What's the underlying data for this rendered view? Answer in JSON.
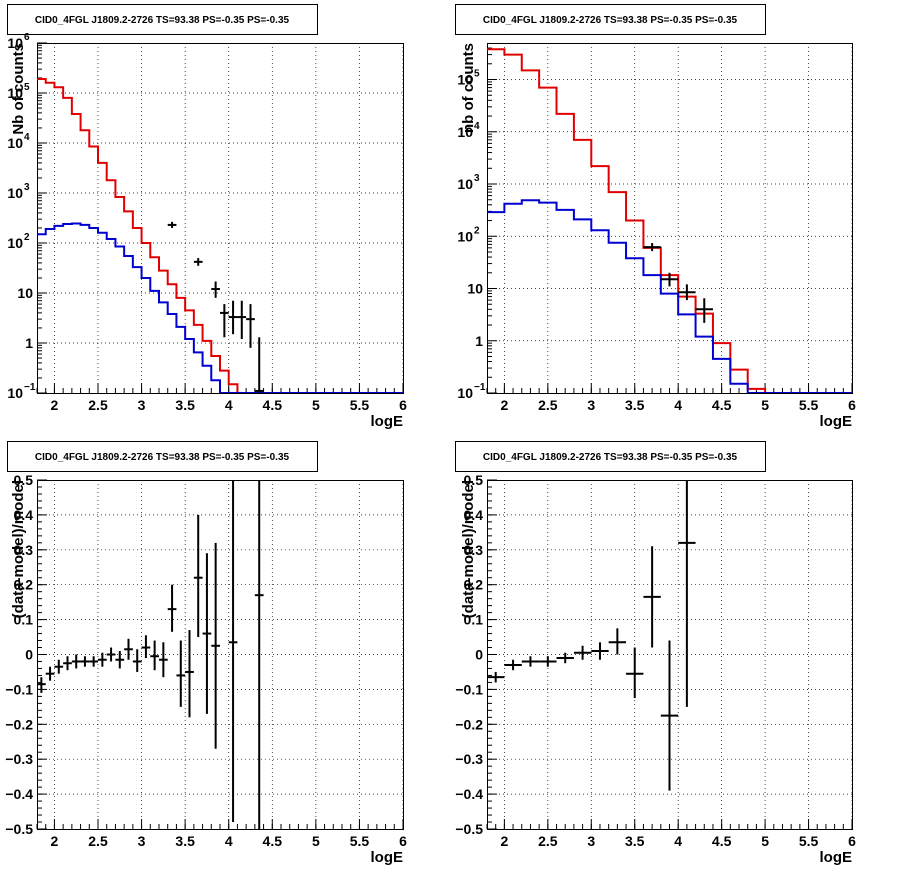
{
  "colors": {
    "total_model": "#e00000",
    "source_model": "#0000d0",
    "data": "#000000",
    "grid": "#000000"
  },
  "chart_data": [
    {
      "type": "line",
      "title": "CID0_4FGL J1809.2-2726 TS=93.38 PS=-0.35 PS=-0.35",
      "xlabel": "logE",
      "ylabel": "Nb of counts",
      "xlim": [
        1.8,
        6.0
      ],
      "ylim": [
        0.1,
        1000000
      ],
      "yscale": "log",
      "grid": true,
      "xticks": [
        {
          "v": 2,
          "label": "2"
        },
        {
          "v": 2.5,
          "label": "2.5"
        },
        {
          "v": 3,
          "label": "3"
        },
        {
          "v": 3.5,
          "label": "3.5"
        },
        {
          "v": 4,
          "label": "4"
        },
        {
          "v": 4.5,
          "label": "4.5"
        },
        {
          "v": 5,
          "label": "5"
        },
        {
          "v": 5.5,
          "label": "5.5"
        },
        {
          "v": 6,
          "label": "6"
        }
      ],
      "yticks": [
        {
          "v": 0.1,
          "base": "10",
          "exp": "−1"
        },
        {
          "v": 1,
          "label": "1"
        },
        {
          "v": 10,
          "label": "10"
        },
        {
          "v": 100,
          "base": "10",
          "exp": "2"
        },
        {
          "v": 1000,
          "base": "10",
          "exp": "3"
        },
        {
          "v": 10000,
          "base": "10",
          "exp": "4"
        },
        {
          "v": 100000,
          "base": "10",
          "exp": "5"
        },
        {
          "v": 1000000,
          "base": "10",
          "exp": "6"
        }
      ],
      "bin_edges": [
        1.8,
        1.9,
        2.0,
        2.1,
        2.2,
        2.3,
        2.4,
        2.5,
        2.6,
        2.7,
        2.8,
        2.9,
        3.0,
        3.1,
        3.2,
        3.3,
        3.4,
        3.5,
        3.6,
        3.7,
        3.8,
        3.9,
        4.0,
        4.1,
        4.2,
        4.3,
        4.4,
        4.5,
        4.6,
        4.7,
        4.8,
        4.9,
        5.0,
        5.1,
        5.2,
        5.3,
        5.4,
        5.5,
        5.6,
        5.7,
        5.8,
        5.9,
        6.0
      ],
      "series": [
        {
          "role": "total_model",
          "values": [
            190000,
            160000,
            130000,
            80000,
            38000,
            18000,
            8500,
            4000,
            1800,
            830,
            430,
            200,
            100,
            52,
            28,
            15,
            8,
            4.5,
            2.3,
            1.1,
            0.55,
            0.28,
            0.15,
            0.1,
            0.1,
            0.1,
            0.1,
            0.1,
            0.1,
            0.1,
            0.1,
            0.1,
            0.1,
            0.1,
            0.1,
            0.1,
            0.1,
            0.1,
            0.1,
            0.1,
            0.1,
            0.1
          ]
        },
        {
          "role": "source_model",
          "values": [
            150,
            190,
            220,
            240,
            245,
            230,
            200,
            160,
            120,
            85,
            55,
            33,
            20,
            11,
            6.5,
            3.8,
            2.1,
            1.2,
            0.65,
            0.35,
            0.18,
            0.1,
            0.1,
            0.1,
            0.1,
            0.1,
            0.1,
            0.1,
            0.1,
            0.1,
            0.1,
            0.1,
            0.1,
            0.1,
            0.1,
            0.1,
            0.1,
            0.1,
            0.1,
            0.1,
            0.1,
            0.1
          ]
        }
      ],
      "points": [
        {
          "x": 3.35,
          "y": 230,
          "xerr": 0.05,
          "ylo": 200,
          "yhi": 265
        },
        {
          "x": 3.65,
          "y": 42,
          "xerr": 0.05,
          "ylo": 35,
          "yhi": 50
        },
        {
          "x": 3.85,
          "y": 12,
          "xerr": 0.05,
          "ylo": 8,
          "yhi": 17
        },
        {
          "x": 3.95,
          "y": 4,
          "xerr": 0.05,
          "ylo": 1.3,
          "yhi": 6
        },
        {
          "x": 4.05,
          "y": 3.3,
          "xerr": 0.05,
          "ylo": 1.5,
          "yhi": 7
        },
        {
          "x": 4.15,
          "y": 3.3,
          "xerr": 0.05,
          "ylo": 1.2,
          "yhi": 7
        },
        {
          "x": 4.25,
          "y": 3,
          "xerr": 0.05,
          "ylo": 0.8,
          "yhi": 6
        },
        {
          "x": 4.35,
          "y": 0.11,
          "xerr": 0.05,
          "ylo": 0.1,
          "yhi": 1.3
        }
      ]
    },
    {
      "type": "line",
      "title": "CID0_4FGL J1809.2-2726 TS=93.38 PS=-0.35 PS=-0.35",
      "xlabel": "logE",
      "ylabel": "nb of counts",
      "xlim": [
        1.8,
        6.0
      ],
      "ylim": [
        0.1,
        500000
      ],
      "yscale": "log",
      "grid": true,
      "xticks": [
        {
          "v": 2,
          "label": "2"
        },
        {
          "v": 2.5,
          "label": "2.5"
        },
        {
          "v": 3,
          "label": "3"
        },
        {
          "v": 3.5,
          "label": "3.5"
        },
        {
          "v": 4,
          "label": "4"
        },
        {
          "v": 4.5,
          "label": "4.5"
        },
        {
          "v": 5,
          "label": "5"
        },
        {
          "v": 5.5,
          "label": "5.5"
        },
        {
          "v": 6,
          "label": "6"
        }
      ],
      "yticks": [
        {
          "v": 0.1,
          "base": "10",
          "exp": "−1"
        },
        {
          "v": 1,
          "label": "1"
        },
        {
          "v": 10,
          "label": "10"
        },
        {
          "v": 100,
          "base": "10",
          "exp": "2"
        },
        {
          "v": 1000,
          "base": "10",
          "exp": "3"
        },
        {
          "v": 10000,
          "base": "10",
          "exp": "4"
        },
        {
          "v": 100000,
          "base": "10",
          "exp": "5"
        }
      ],
      "bin_edges": [
        1.8,
        2.0,
        2.2,
        2.4,
        2.6,
        2.8,
        3.0,
        3.2,
        3.4,
        3.6,
        3.8,
        4.0,
        4.2,
        4.4,
        4.6,
        4.8,
        5.0,
        5.2,
        5.4,
        5.6,
        5.8,
        6.0
      ],
      "series": [
        {
          "role": "total_model",
          "values": [
            380000,
            300000,
            150000,
            70000,
            22000,
            7000,
            2200,
            700,
            200,
            60,
            18,
            7,
            3.3,
            0.9,
            0.28,
            0.12,
            0.1,
            0.1,
            0.1,
            0.1,
            0.1
          ]
        },
        {
          "role": "source_model",
          "values": [
            290,
            420,
            490,
            440,
            320,
            210,
            130,
            75,
            38,
            18,
            8,
            3.2,
            1.2,
            0.45,
            0.15,
            0.1,
            0.1,
            0.1,
            0.1,
            0.1,
            0.1
          ]
        }
      ],
      "points": [
        {
          "x": 3.7,
          "y": 62,
          "xerr": 0.1,
          "ylo": 52,
          "yhi": 74
        },
        {
          "x": 3.9,
          "y": 15,
          "xerr": 0.1,
          "ylo": 11,
          "yhi": 20
        },
        {
          "x": 4.1,
          "y": 8.5,
          "xerr": 0.1,
          "ylo": 6,
          "yhi": 12
        },
        {
          "x": 4.3,
          "y": 4,
          "xerr": 0.1,
          "ylo": 2.2,
          "yhi": 6.5
        }
      ]
    },
    {
      "type": "scatter",
      "title": "CID0_4FGL J1809.2-2726 TS=93.38 PS=-0.35 PS=-0.35",
      "xlabel": "logE",
      "ylabel": "(data-model)/model",
      "xlim": [
        1.8,
        6.0
      ],
      "ylim": [
        -0.5,
        0.5
      ],
      "grid": true,
      "xticks": [
        {
          "v": 2,
          "label": "2"
        },
        {
          "v": 2.5,
          "label": "2.5"
        },
        {
          "v": 3,
          "label": "3"
        },
        {
          "v": 3.5,
          "label": "3.5"
        },
        {
          "v": 4,
          "label": "4"
        },
        {
          "v": 4.5,
          "label": "4.5"
        },
        {
          "v": 5,
          "label": "5"
        },
        {
          "v": 5.5,
          "label": "5.5"
        },
        {
          "v": 6,
          "label": "6"
        }
      ],
      "yticks": [
        {
          "v": -0.5,
          "label": "−0.5"
        },
        {
          "v": -0.4,
          "label": "−0.4"
        },
        {
          "v": -0.3,
          "label": "−0.3"
        },
        {
          "v": -0.2,
          "label": "−0.2"
        },
        {
          "v": -0.1,
          "label": "−0.1"
        },
        {
          "v": 0,
          "label": "0"
        },
        {
          "v": 0.1,
          "label": "0.1"
        },
        {
          "v": 0.2,
          "label": "0.2"
        },
        {
          "v": 0.3,
          "label": "0.3"
        },
        {
          "v": 0.4,
          "label": "0.4"
        },
        {
          "v": 0.5,
          "label": "0.5"
        }
      ],
      "points": [
        {
          "x": 1.85,
          "y": -0.085,
          "xerr": 0.05,
          "ylo": -0.11,
          "yhi": -0.065
        },
        {
          "x": 1.95,
          "y": -0.055,
          "xerr": 0.05,
          "ylo": -0.075,
          "yhi": -0.035
        },
        {
          "x": 2.05,
          "y": -0.035,
          "xerr": 0.05,
          "ylo": -0.055,
          "yhi": -0.015
        },
        {
          "x": 2.15,
          "y": -0.025,
          "xerr": 0.05,
          "ylo": -0.045,
          "yhi": -0.005
        },
        {
          "x": 2.25,
          "y": -0.02,
          "xerr": 0.05,
          "ylo": -0.04,
          "yhi": 0.0
        },
        {
          "x": 2.35,
          "y": -0.02,
          "xerr": 0.05,
          "ylo": -0.035,
          "yhi": -0.005
        },
        {
          "x": 2.45,
          "y": -0.02,
          "xerr": 0.05,
          "ylo": -0.035,
          "yhi": -0.005
        },
        {
          "x": 2.55,
          "y": -0.015,
          "xerr": 0.05,
          "ylo": -0.035,
          "yhi": 0.005
        },
        {
          "x": 2.65,
          "y": 0.0,
          "xerr": 0.05,
          "ylo": -0.02,
          "yhi": 0.02
        },
        {
          "x": 2.75,
          "y": -0.015,
          "xerr": 0.05,
          "ylo": -0.04,
          "yhi": 0.01
        },
        {
          "x": 2.85,
          "y": 0.015,
          "xerr": 0.05,
          "ylo": -0.015,
          "yhi": 0.045
        },
        {
          "x": 2.95,
          "y": -0.02,
          "xerr": 0.05,
          "ylo": -0.05,
          "yhi": 0.015
        },
        {
          "x": 3.05,
          "y": 0.02,
          "xerr": 0.05,
          "ylo": -0.01,
          "yhi": 0.055
        },
        {
          "x": 3.15,
          "y": -0.005,
          "xerr": 0.05,
          "ylo": -0.045,
          "yhi": 0.04
        },
        {
          "x": 3.25,
          "y": -0.015,
          "xerr": 0.05,
          "ylo": -0.065,
          "yhi": 0.035
        },
        {
          "x": 3.35,
          "y": 0.13,
          "xerr": 0.05,
          "ylo": 0.065,
          "yhi": 0.2
        },
        {
          "x": 3.45,
          "y": -0.06,
          "xerr": 0.05,
          "ylo": -0.15,
          "yhi": 0.04
        },
        {
          "x": 3.55,
          "y": -0.05,
          "xerr": 0.05,
          "ylo": -0.18,
          "yhi": 0.07
        },
        {
          "x": 3.65,
          "y": 0.22,
          "xerr": 0.05,
          "ylo": 0.05,
          "yhi": 0.4
        },
        {
          "x": 3.75,
          "y": 0.06,
          "xerr": 0.05,
          "ylo": -0.17,
          "yhi": 0.29
        },
        {
          "x": 3.85,
          "y": 0.025,
          "xerr": 0.05,
          "ylo": -0.27,
          "yhi": 0.32
        },
        {
          "x": 4.05,
          "y": 0.035,
          "xerr": 0.05,
          "ylo": -0.48,
          "yhi": 0.5
        },
        {
          "x": 4.35,
          "y": 0.17,
          "xerr": 0.05,
          "ylo": -0.5,
          "yhi": 0.5
        }
      ]
    },
    {
      "type": "scatter",
      "title": "CID0_4FGL J1809.2-2726 TS=93.38 PS=-0.35 PS=-0.35",
      "xlabel": "logE",
      "ylabel": "(data-model)/model",
      "xlim": [
        1.8,
        6.0
      ],
      "ylim": [
        -0.5,
        0.5
      ],
      "grid": true,
      "xticks": [
        {
          "v": 2,
          "label": "2"
        },
        {
          "v": 2.5,
          "label": "2.5"
        },
        {
          "v": 3,
          "label": "3"
        },
        {
          "v": 3.5,
          "label": "3.5"
        },
        {
          "v": 4,
          "label": "4"
        },
        {
          "v": 4.5,
          "label": "4.5"
        },
        {
          "v": 5,
          "label": "5"
        },
        {
          "v": 5.5,
          "label": "5.5"
        },
        {
          "v": 6,
          "label": "6"
        }
      ],
      "yticks": [
        {
          "v": -0.5,
          "label": "−0.5"
        },
        {
          "v": -0.4,
          "label": "−0.4"
        },
        {
          "v": -0.3,
          "label": "−0.3"
        },
        {
          "v": -0.2,
          "label": "−0.2"
        },
        {
          "v": -0.1,
          "label": "−0.1"
        },
        {
          "v": 0,
          "label": "0"
        },
        {
          "v": 0.1,
          "label": "0.1"
        },
        {
          "v": 0.2,
          "label": "0.2"
        },
        {
          "v": 0.3,
          "label": "0.3"
        },
        {
          "v": 0.4,
          "label": "0.4"
        },
        {
          "v": 0.5,
          "label": "0.5"
        }
      ],
      "points": [
        {
          "x": 1.9,
          "y": -0.065,
          "xerr": 0.1,
          "ylo": -0.08,
          "yhi": -0.05
        },
        {
          "x": 2.1,
          "y": -0.03,
          "xerr": 0.1,
          "ylo": -0.045,
          "yhi": -0.015
        },
        {
          "x": 2.3,
          "y": -0.02,
          "xerr": 0.1,
          "ylo": -0.035,
          "yhi": -0.005
        },
        {
          "x": 2.5,
          "y": -0.02,
          "xerr": 0.1,
          "ylo": -0.035,
          "yhi": -0.005
        },
        {
          "x": 2.7,
          "y": -0.01,
          "xerr": 0.1,
          "ylo": -0.025,
          "yhi": 0.005
        },
        {
          "x": 2.9,
          "y": 0.005,
          "xerr": 0.1,
          "ylo": -0.015,
          "yhi": 0.025
        },
        {
          "x": 3.1,
          "y": 0.01,
          "xerr": 0.1,
          "ylo": -0.015,
          "yhi": 0.035
        },
        {
          "x": 3.3,
          "y": 0.035,
          "xerr": 0.1,
          "ylo": 0.0,
          "yhi": 0.075
        },
        {
          "x": 3.5,
          "y": -0.055,
          "xerr": 0.1,
          "ylo": -0.125,
          "yhi": 0.02
        },
        {
          "x": 3.7,
          "y": 0.165,
          "xerr": 0.1,
          "ylo": 0.02,
          "yhi": 0.31
        },
        {
          "x": 3.9,
          "y": -0.175,
          "xerr": 0.1,
          "ylo": -0.39,
          "yhi": 0.04
        },
        {
          "x": 4.1,
          "y": 0.32,
          "xerr": 0.1,
          "ylo": -0.15,
          "yhi": 0.5
        }
      ]
    }
  ]
}
